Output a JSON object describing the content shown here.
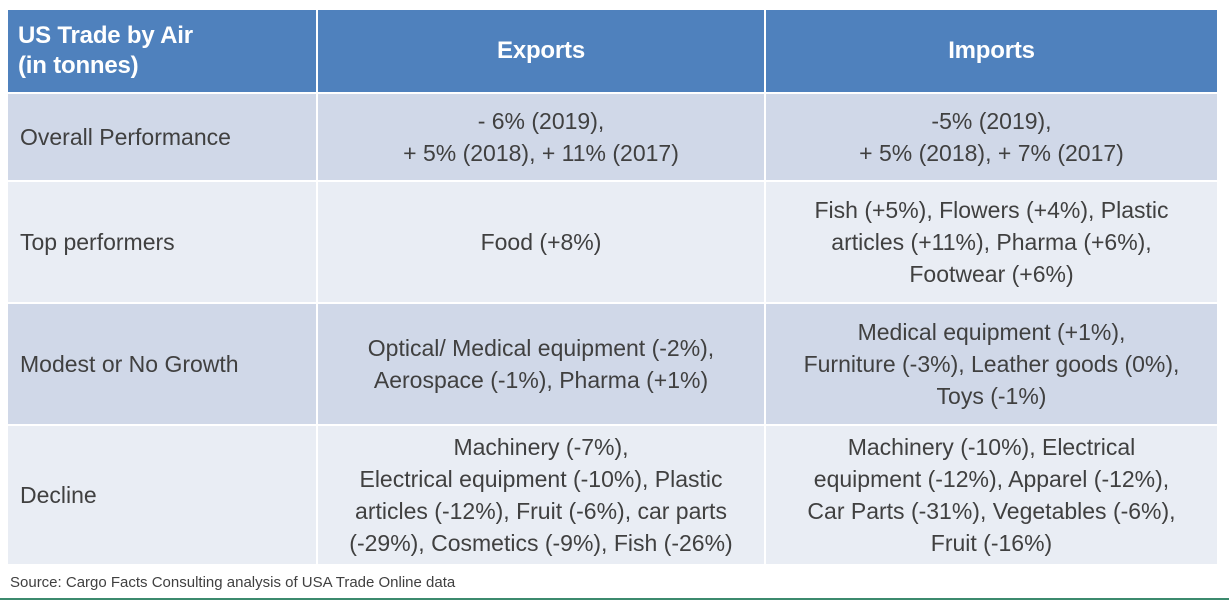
{
  "table": {
    "header": {
      "corner_line1": "US Trade by Air",
      "corner_line2": "(in tonnes)",
      "exports": "Exports",
      "imports": "Imports"
    },
    "rows": [
      {
        "label": "Overall Performance",
        "exports": [
          "- 6% (2019),",
          "+ 5% (2018), + 11% (2017)"
        ],
        "imports": [
          "-5% (2019),",
          "+ 5% (2018), + 7% (2017)"
        ]
      },
      {
        "label": "Top performers",
        "exports": [
          "Food (+8%)"
        ],
        "imports": [
          "Fish (+5%), Flowers (+4%), Plastic",
          "articles (+11%), Pharma (+6%),",
          "Footwear (+6%)"
        ]
      },
      {
        "label": "Modest or No Growth",
        "exports": [
          "Optical/ Medical equipment (-2%),",
          "Aerospace (-1%), Pharma (+1%)"
        ],
        "imports": [
          "Medical equipment (+1%),",
          "Furniture (-3%), Leather goods (0%),",
          "Toys (-1%)"
        ]
      },
      {
        "label": "Decline",
        "exports": [
          "Machinery (-7%),",
          "Electrical equipment (-10%), Plastic",
          "articles (-12%), Fruit (-6%), car parts",
          "(-29%), Cosmetics (-9%), Fish (-26%)"
        ],
        "imports": [
          "Machinery (-10%), Electrical",
          "equipment (-12%), Apparel (-12%),",
          "Car Parts (-31%), Vegetables (-6%),",
          "Fruit (-16%)"
        ]
      }
    ]
  },
  "source": "Source: Cargo Facts Consulting analysis of USA Trade Online data",
  "colors": {
    "header_bg": "#4f81bd",
    "row_bg": "#d0d8e8",
    "row_alt_bg": "#e9edf4",
    "bottom_rule": "#3c8a6e"
  }
}
